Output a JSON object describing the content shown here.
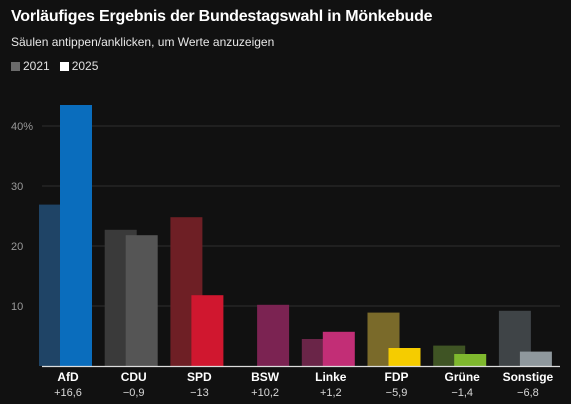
{
  "header": {
    "title": "Vorläufiges Ergebnis der Bundestagswahl in Mönkebude",
    "subtitle": "Säulen antippen/anklicken, um Werte anzuzeigen"
  },
  "legend": [
    {
      "label": "2021",
      "color": "#6b6b6b"
    },
    {
      "label": "2025",
      "color": "#ffffff"
    }
  ],
  "chart_data": {
    "type": "bar",
    "title": "Vorläufiges Ergebnis der Bundestagswahl in Mönkebude",
    "subtitle": "Säulen antippen/anklicken, um Werte anzuzeigen",
    "ylabel": "",
    "ylim": [
      0,
      45
    ],
    "yticks": [
      10,
      20,
      30,
      40
    ],
    "ytick_labels": [
      "10",
      "20",
      "30",
      "40%"
    ],
    "grid": true,
    "legend_position": "top-left",
    "categories": [
      "AfD",
      "CDU",
      "SPD",
      "BSW",
      "Linke",
      "FDP",
      "Grüne",
      "Sonstige"
    ],
    "changes": [
      "+16,6",
      "−0,9",
      "−13",
      "+10,2",
      "+1,2",
      "−5,9",
      "−1,4",
      "−6,8"
    ],
    "series": [
      {
        "name": "2021",
        "values": [
          26.9,
          22.7,
          24.8,
          0,
          4.5,
          8.9,
          3.4,
          9.2
        ]
      },
      {
        "name": "2025",
        "values": [
          43.5,
          21.8,
          11.8,
          10.2,
          5.7,
          3.0,
          2.0,
          2.4
        ]
      }
    ],
    "colors_2021": [
      "#1f4466",
      "#3a3a3a",
      "#6e1f25",
      "#4a1b33",
      "#6a2548",
      "#7a6a2a",
      "#3f5424",
      "#3f4447"
    ],
    "colors_2025": [
      "#0a6dbd",
      "#555555",
      "#d0172f",
      "#7b2352",
      "#c22e76",
      "#f5cc00",
      "#7fb82e",
      "#8f989d"
    ]
  }
}
